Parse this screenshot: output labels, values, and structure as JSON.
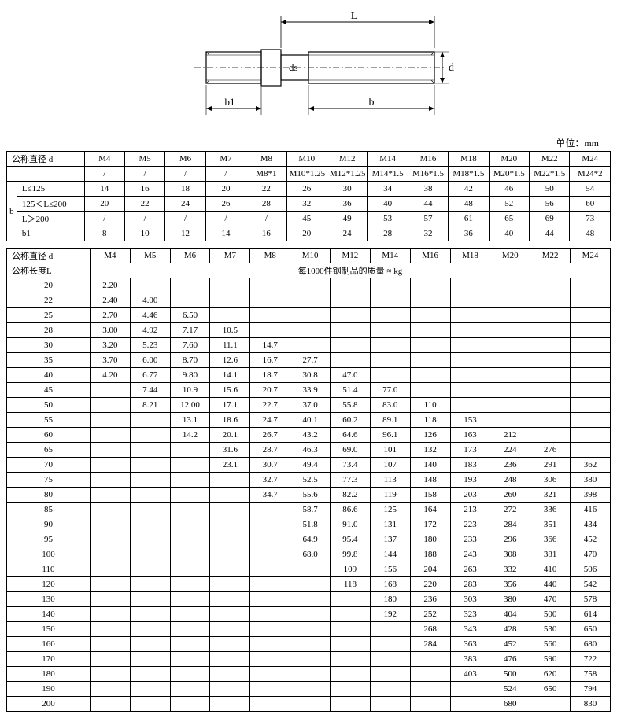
{
  "unit_label": "单位：mm",
  "diagram": {
    "labels": {
      "L": "L",
      "b": "b",
      "b1": "b1",
      "ds": "ds",
      "d": "d"
    },
    "stroke_color": "#000000",
    "dash_pattern": "4 2",
    "line_width": 1,
    "background": "#ffffff"
  },
  "table1": {
    "header_label": "公称直径 d",
    "b_label": "b",
    "columns": [
      "M4",
      "M5",
      "M6",
      "M7",
      "M8",
      "M10",
      "M12",
      "M14",
      "M16",
      "M18",
      "M20",
      "M22",
      "M24"
    ],
    "pitch_row_label": "",
    "pitch_row": [
      "/",
      "/",
      "/",
      "/",
      "M8*1",
      "M10*1.25",
      "M12*1.25",
      "M14*1.5",
      "M16*1.5",
      "M18*1.5",
      "M20*1.5",
      "M22*1.5",
      "M24*2"
    ],
    "rows": [
      {
        "label": "L≤125",
        "vals": [
          "14",
          "16",
          "18",
          "20",
          "22",
          "26",
          "30",
          "34",
          "38",
          "42",
          "46",
          "50",
          "54"
        ]
      },
      {
        "label": "125＜L≤200",
        "vals": [
          "20",
          "22",
          "24",
          "26",
          "28",
          "32",
          "36",
          "40",
          "44",
          "48",
          "52",
          "56",
          "60"
        ]
      },
      {
        "label": "L＞200",
        "vals": [
          "/",
          "/",
          "/",
          "/",
          "/",
          "45",
          "49",
          "53",
          "57",
          "61",
          "65",
          "69",
          "73"
        ]
      },
      {
        "label": "b1",
        "vals": [
          "8",
          "10",
          "12",
          "14",
          "16",
          "20",
          "24",
          "28",
          "32",
          "36",
          "40",
          "44",
          "48"
        ]
      }
    ]
  },
  "table2": {
    "header_label": "公称直径 d",
    "length_label": "公称长度L",
    "mass_caption": "每1000件钢制品的质量 ≈ kg",
    "columns": [
      "M4",
      "M5",
      "M6",
      "M7",
      "M8",
      "M10",
      "M12",
      "M14",
      "M16",
      "M18",
      "M20",
      "M22",
      "M24"
    ],
    "rows": [
      {
        "L": "20",
        "vals": [
          "2.20",
          "",
          "",
          "",
          "",
          "",
          "",
          "",
          "",
          "",
          "",
          "",
          ""
        ]
      },
      {
        "L": "22",
        "vals": [
          "2.40",
          "4.00",
          "",
          "",
          "",
          "",
          "",
          "",
          "",
          "",
          "",
          "",
          ""
        ]
      },
      {
        "L": "25",
        "vals": [
          "2.70",
          "4.46",
          "6.50",
          "",
          "",
          "",
          "",
          "",
          "",
          "",
          "",
          "",
          ""
        ]
      },
      {
        "L": "28",
        "vals": [
          "3.00",
          "4.92",
          "7.17",
          "10.5",
          "",
          "",
          "",
          "",
          "",
          "",
          "",
          "",
          ""
        ]
      },
      {
        "L": "30",
        "vals": [
          "3.20",
          "5.23",
          "7.60",
          "11.1",
          "14.7",
          "",
          "",
          "",
          "",
          "",
          "",
          "",
          ""
        ]
      },
      {
        "L": "35",
        "vals": [
          "3.70",
          "6.00",
          "8.70",
          "12.6",
          "16.7",
          "27.7",
          "",
          "",
          "",
          "",
          "",
          "",
          ""
        ]
      },
      {
        "L": "40",
        "vals": [
          "4.20",
          "6.77",
          "9.80",
          "14.1",
          "18.7",
          "30.8",
          "47.0",
          "",
          "",
          "",
          "",
          "",
          ""
        ]
      },
      {
        "L": "45",
        "vals": [
          "",
          "7.44",
          "10.9",
          "15.6",
          "20.7",
          "33.9",
          "51.4",
          "77.0",
          "",
          "",
          "",
          "",
          ""
        ]
      },
      {
        "L": "50",
        "vals": [
          "",
          "8.21",
          "12.00",
          "17.1",
          "22.7",
          "37.0",
          "55.8",
          "83.0",
          "110",
          "",
          "",
          "",
          ""
        ]
      },
      {
        "L": "55",
        "vals": [
          "",
          "",
          "13.1",
          "18.6",
          "24.7",
          "40.1",
          "60.2",
          "89.1",
          "118",
          "153",
          "",
          "",
          ""
        ]
      },
      {
        "L": "60",
        "vals": [
          "",
          "",
          "14.2",
          "20.1",
          "26.7",
          "43.2",
          "64.6",
          "96.1",
          "126",
          "163",
          "212",
          "",
          ""
        ]
      },
      {
        "L": "65",
        "vals": [
          "",
          "",
          "",
          "31.6",
          "28.7",
          "46.3",
          "69.0",
          "101",
          "132",
          "173",
          "224",
          "276",
          ""
        ]
      },
      {
        "L": "70",
        "vals": [
          "",
          "",
          "",
          "23.1",
          "30.7",
          "49.4",
          "73.4",
          "107",
          "140",
          "183",
          "236",
          "291",
          "362"
        ]
      },
      {
        "L": "75",
        "vals": [
          "",
          "",
          "",
          "",
          "32.7",
          "52.5",
          "77.3",
          "113",
          "148",
          "193",
          "248",
          "306",
          "380"
        ]
      },
      {
        "L": "80",
        "vals": [
          "",
          "",
          "",
          "",
          "34.7",
          "55.6",
          "82.2",
          "119",
          "158",
          "203",
          "260",
          "321",
          "398"
        ]
      },
      {
        "L": "85",
        "vals": [
          "",
          "",
          "",
          "",
          "",
          "58.7",
          "86.6",
          "125",
          "164",
          "213",
          "272",
          "336",
          "416"
        ]
      },
      {
        "L": "90",
        "vals": [
          "",
          "",
          "",
          "",
          "",
          "51.8",
          "91.0",
          "131",
          "172",
          "223",
          "284",
          "351",
          "434"
        ]
      },
      {
        "L": "95",
        "vals": [
          "",
          "",
          "",
          "",
          "",
          "64.9",
          "95.4",
          "137",
          "180",
          "233",
          "296",
          "366",
          "452"
        ]
      },
      {
        "L": "100",
        "vals": [
          "",
          "",
          "",
          "",
          "",
          "68.0",
          "99.8",
          "144",
          "188",
          "243",
          "308",
          "381",
          "470"
        ]
      },
      {
        "L": "110",
        "vals": [
          "",
          "",
          "",
          "",
          "",
          "",
          "109",
          "156",
          "204",
          "263",
          "332",
          "410",
          "506"
        ]
      },
      {
        "L": "120",
        "vals": [
          "",
          "",
          "",
          "",
          "",
          "",
          "118",
          "168",
          "220",
          "283",
          "356",
          "440",
          "542"
        ]
      },
      {
        "L": "130",
        "vals": [
          "",
          "",
          "",
          "",
          "",
          "",
          "",
          "180",
          "236",
          "303",
          "380",
          "470",
          "578"
        ]
      },
      {
        "L": "140",
        "vals": [
          "",
          "",
          "",
          "",
          "",
          "",
          "",
          "192",
          "252",
          "323",
          "404",
          "500",
          "614"
        ]
      },
      {
        "L": "150",
        "vals": [
          "",
          "",
          "",
          "",
          "",
          "",
          "",
          "",
          "268",
          "343",
          "428",
          "530",
          "650"
        ]
      },
      {
        "L": "160",
        "vals": [
          "",
          "",
          "",
          "",
          "",
          "",
          "",
          "",
          "284",
          "363",
          "452",
          "560",
          "680"
        ]
      },
      {
        "L": "170",
        "vals": [
          "",
          "",
          "",
          "",
          "",
          "",
          "",
          "",
          "",
          "383",
          "476",
          "590",
          "722"
        ]
      },
      {
        "L": "180",
        "vals": [
          "",
          "",
          "",
          "",
          "",
          "",
          "",
          "",
          "",
          "403",
          "500",
          "620",
          "758"
        ]
      },
      {
        "L": "190",
        "vals": [
          "",
          "",
          "",
          "",
          "",
          "",
          "",
          "",
          "",
          "",
          "524",
          "650",
          "794"
        ]
      },
      {
        "L": "200",
        "vals": [
          "",
          "",
          "",
          "",
          "",
          "",
          "",
          "",
          "",
          "",
          "680",
          "",
          "830"
        ]
      }
    ]
  }
}
